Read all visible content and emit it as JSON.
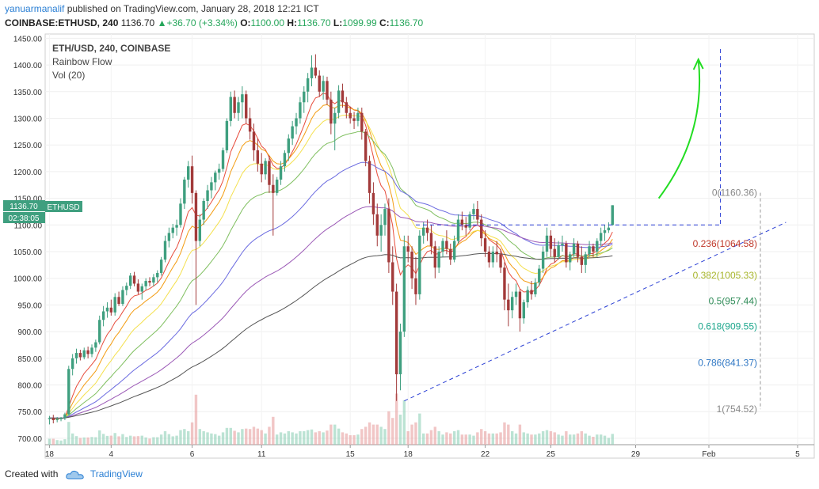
{
  "header": {
    "user": "yanuarmanalif",
    "published": "published on TradingView.com, January 28, 2018 12:21 ICT",
    "symbol": "COINBASE:ETHUSD, 240",
    "last": "1136.70",
    "change": "+36.70 (+3.34%)",
    "o_label": "O:",
    "o_value": "1100.00",
    "h_label": "H:",
    "h_value": "1136.70",
    "l_label": "L:",
    "l_value": "1099.99",
    "c_label": "C:",
    "c_value": "1136.70"
  },
  "legend": {
    "line1": "ETH/USD, 240, COINBASE",
    "line2": "Rainbow Flow",
    "line3": "Vol (20)"
  },
  "price_tag": {
    "symbol": "ETHUSD",
    "value": "1136.70",
    "countdown": "02:38:05"
  },
  "footer": {
    "created": "Created with",
    "brand": "TradingView"
  },
  "colors": {
    "up": "#3f9f7f",
    "down": "#a23a3a",
    "fib_red": "#c0392b",
    "fib_yellow": "#a7b52a",
    "fib_green": "#2e8b57",
    "fib_teal": "#1aa58b",
    "fib_blue": "#2f77c4",
    "arrow": "#22dd22"
  },
  "chart_data": {
    "type": "candlestick",
    "title": "ETH/USD, 240, COINBASE",
    "y_axis": {
      "ticks": [
        "1450.00",
        "1400.00",
        "1350.00",
        "1300.00",
        "1250.00",
        "1200.00",
        "1150.00",
        "1100.00",
        "1050.00",
        "1000.00",
        "950.00",
        "900.00",
        "850.00",
        "800.00",
        "750.00",
        "700.00"
      ],
      "ylim": [
        688,
        1458
      ]
    },
    "x_axis": {
      "ticks": [
        {
          "label": "18",
          "idx": 0
        },
        {
          "label": "4",
          "idx": 16
        },
        {
          "label": "6",
          "idx": 37
        },
        {
          "label": "11",
          "idx": 55
        },
        {
          "label": "15",
          "idx": 78
        },
        {
          "label": "18",
          "idx": 93
        },
        {
          "label": "22",
          "idx": 113
        },
        {
          "label": "25",
          "idx": 130
        },
        {
          "label": "29",
          "idx": 152
        },
        {
          "label": "Feb",
          "idx": 171
        },
        {
          "label": "5",
          "idx": 194
        }
      ],
      "n_slots": 198
    },
    "candles": [
      [
        736,
        742,
        726,
        738
      ],
      [
        738,
        744,
        728,
        734
      ],
      [
        734,
        740,
        730,
        736
      ],
      [
        736,
        740,
        732,
        738
      ],
      [
        738,
        748,
        734,
        745
      ],
      [
        745,
        836,
        744,
        830
      ],
      [
        830,
        858,
        818,
        850
      ],
      [
        850,
        868,
        840,
        860
      ],
      [
        860,
        866,
        846,
        852
      ],
      [
        852,
        870,
        848,
        865
      ],
      [
        865,
        872,
        850,
        858
      ],
      [
        858,
        876,
        852,
        870
      ],
      [
        870,
        885,
        862,
        880
      ],
      [
        880,
        930,
        876,
        922
      ],
      [
        922,
        948,
        910,
        938
      ],
      [
        938,
        955,
        926,
        945
      ],
      [
        945,
        960,
        930,
        936
      ],
      [
        936,
        972,
        930,
        965
      ],
      [
        965,
        975,
        948,
        952
      ],
      [
        952,
        985,
        948,
        978
      ],
      [
        978,
        992,
        968,
        986
      ],
      [
        986,
        1010,
        980,
        1005
      ],
      [
        1005,
        1012,
        985,
        990
      ],
      [
        990,
        998,
        970,
        975
      ],
      [
        975,
        990,
        960,
        985
      ],
      [
        985,
        1000,
        978,
        995
      ],
      [
        995,
        1002,
        985,
        992
      ],
      [
        992,
        1008,
        985,
        1002
      ],
      [
        1002,
        1015,
        992,
        1010
      ],
      [
        1010,
        1040,
        1005,
        1035
      ],
      [
        1035,
        1080,
        1030,
        1070
      ],
      [
        1070,
        1095,
        1058,
        1085
      ],
      [
        1085,
        1102,
        1075,
        1095
      ],
      [
        1095,
        1110,
        1080,
        1100
      ],
      [
        1100,
        1150,
        1095,
        1140
      ],
      [
        1140,
        1190,
        1130,
        1185
      ],
      [
        1185,
        1220,
        1170,
        1210
      ],
      [
        1210,
        1230,
        1140,
        1160
      ],
      [
        1160,
        1165,
        950,
        1070
      ],
      [
        1070,
        1120,
        1060,
        1110
      ],
      [
        1110,
        1150,
        1100,
        1145
      ],
      [
        1145,
        1175,
        1130,
        1165
      ],
      [
        1165,
        1190,
        1150,
        1180
      ],
      [
        1180,
        1202,
        1165,
        1198
      ],
      [
        1198,
        1215,
        1185,
        1205
      ],
      [
        1205,
        1245,
        1200,
        1240
      ],
      [
        1240,
        1300,
        1235,
        1295
      ],
      [
        1295,
        1350,
        1285,
        1340
      ],
      [
        1340,
        1352,
        1300,
        1310
      ],
      [
        1310,
        1340,
        1295,
        1330
      ],
      [
        1330,
        1360,
        1300,
        1345
      ],
      [
        1345,
        1352,
        1290,
        1300
      ],
      [
        1300,
        1320,
        1260,
        1275
      ],
      [
        1275,
        1290,
        1220,
        1240
      ],
      [
        1240,
        1262,
        1200,
        1215
      ],
      [
        1215,
        1235,
        1180,
        1195
      ],
      [
        1195,
        1225,
        1185,
        1220
      ],
      [
        1220,
        1230,
        1160,
        1175
      ],
      [
        1175,
        1195,
        1080,
        1160
      ],
      [
        1160,
        1190,
        1155,
        1185
      ],
      [
        1185,
        1220,
        1175,
        1210
      ],
      [
        1210,
        1240,
        1200,
        1235
      ],
      [
        1235,
        1270,
        1220,
        1262
      ],
      [
        1262,
        1295,
        1250,
        1285
      ],
      [
        1285,
        1310,
        1270,
        1300
      ],
      [
        1300,
        1340,
        1290,
        1330
      ],
      [
        1330,
        1360,
        1310,
        1350
      ],
      [
        1350,
        1385,
        1330,
        1375
      ],
      [
        1375,
        1418,
        1360,
        1395
      ],
      [
        1395,
        1420,
        1375,
        1380
      ],
      [
        1380,
        1390,
        1340,
        1350
      ],
      [
        1350,
        1380,
        1335,
        1370
      ],
      [
        1370,
        1378,
        1325,
        1335
      ],
      [
        1335,
        1350,
        1270,
        1290
      ],
      [
        1290,
        1320,
        1240,
        1310
      ],
      [
        1310,
        1362,
        1300,
        1352
      ],
      [
        1352,
        1365,
        1320,
        1330
      ],
      [
        1330,
        1340,
        1300,
        1310
      ],
      [
        1310,
        1322,
        1290,
        1300
      ],
      [
        1300,
        1312,
        1280,
        1295
      ],
      [
        1295,
        1320,
        1285,
        1310
      ],
      [
        1310,
        1320,
        1260,
        1275
      ],
      [
        1275,
        1280,
        1210,
        1220
      ],
      [
        1220,
        1230,
        1140,
        1160
      ],
      [
        1160,
        1180,
        1100,
        1120
      ],
      [
        1120,
        1140,
        1060,
        1080
      ],
      [
        1080,
        1120,
        1050,
        1100
      ],
      [
        1100,
        1140,
        1080,
        1130
      ],
      [
        1130,
        1150,
        1010,
        1030
      ],
      [
        1030,
        1060,
        950,
        975
      ],
      [
        975,
        990,
        770,
        820
      ],
      [
        820,
        915,
        790,
        900
      ],
      [
        900,
        1080,
        890,
        1060
      ],
      [
        1060,
        1080,
        1030,
        1050
      ],
      [
        1050,
        1060,
        980,
        1000
      ],
      [
        1000,
        1040,
        950,
        970
      ],
      [
        970,
        1090,
        960,
        1080
      ],
      [
        1080,
        1105,
        1065,
        1095
      ],
      [
        1095,
        1110,
        1070,
        1085
      ],
      [
        1085,
        1100,
        1045,
        1060
      ],
      [
        1060,
        1070,
        1000,
        1020
      ],
      [
        1020,
        1060,
        1010,
        1050
      ],
      [
        1050,
        1075,
        1040,
        1070
      ],
      [
        1070,
        1090,
        1045,
        1055
      ],
      [
        1055,
        1065,
        1025,
        1035
      ],
      [
        1035,
        1080,
        1030,
        1070
      ],
      [
        1070,
        1120,
        1065,
        1110
      ],
      [
        1110,
        1125,
        1090,
        1100
      ],
      [
        1100,
        1115,
        1080,
        1095
      ],
      [
        1095,
        1125,
        1090,
        1120
      ],
      [
        1120,
        1140,
        1110,
        1130
      ],
      [
        1130,
        1145,
        1100,
        1110
      ],
      [
        1110,
        1120,
        1060,
        1075
      ],
      [
        1075,
        1090,
        1040,
        1050
      ],
      [
        1050,
        1060,
        1020,
        1030
      ],
      [
        1030,
        1060,
        1020,
        1050
      ],
      [
        1050,
        1070,
        1030,
        1045
      ],
      [
        1045,
        1055,
        1010,
        1020
      ],
      [
        1020,
        1030,
        940,
        960
      ],
      [
        960,
        990,
        910,
        940
      ],
      [
        940,
        975,
        925,
        965
      ],
      [
        965,
        990,
        950,
        975
      ],
      [
        975,
        980,
        900,
        925
      ],
      [
        925,
        960,
        915,
        955
      ],
      [
        955,
        985,
        945,
        978
      ],
      [
        978,
        995,
        960,
        970
      ],
      [
        970,
        1000,
        965,
        992
      ],
      [
        992,
        1025,
        985,
        1018
      ],
      [
        1018,
        1060,
        1010,
        1050
      ],
      [
        1050,
        1095,
        1040,
        1080
      ],
      [
        1080,
        1090,
        1040,
        1055
      ],
      [
        1055,
        1075,
        1030,
        1040
      ],
      [
        1040,
        1070,
        1035,
        1062
      ],
      [
        1062,
        1080,
        1050,
        1065
      ],
      [
        1065,
        1070,
        1020,
        1030
      ],
      [
        1030,
        1050,
        1015,
        1045
      ],
      [
        1045,
        1075,
        1040,
        1065
      ],
      [
        1065,
        1070,
        1030,
        1040
      ],
      [
        1040,
        1060,
        1010,
        1025
      ],
      [
        1025,
        1050,
        1010,
        1045
      ],
      [
        1045,
        1070,
        1040,
        1060
      ],
      [
        1060,
        1065,
        1040,
        1050
      ],
      [
        1050,
        1075,
        1040,
        1070
      ],
      [
        1070,
        1095,
        1060,
        1085
      ],
      [
        1085,
        1100,
        1070,
        1090
      ],
      [
        1090,
        1105,
        1085,
        1095
      ],
      [
        1100,
        1137,
        1099,
        1137
      ]
    ],
    "horizontal_level": 1100,
    "trendline": [
      [
        92,
        770
      ],
      [
        191,
        1105
      ]
    ],
    "fibonacci": [
      {
        "label": "0(1160.36)",
        "value": 1160.36,
        "color": "#888888"
      },
      {
        "label": "0.236(1064.58)",
        "value": 1064.58,
        "color": "#c0392b"
      },
      {
        "label": "0.382(1005.33)",
        "value": 1005.33,
        "color": "#a7b52a"
      },
      {
        "label": "0.5(957.44)",
        "value": 957.44,
        "color": "#2e8b57"
      },
      {
        "label": "0.618(909.55)",
        "value": 909.55,
        "color": "#1aa58b"
      },
      {
        "label": "0.786(841.37)",
        "value": 841.37,
        "color": "#2f77c4"
      },
      {
        "label": "1(754.52)",
        "value": 754.52,
        "color": "#888888"
      }
    ],
    "ma_periods": [
      8,
      13,
      21,
      34,
      55,
      89,
      144
    ],
    "ma_colors": [
      "#e74c3c",
      "#f39c12",
      "#f4e04d",
      "#7fbf5f",
      "#6a6ae0",
      "#9b59b6",
      "#555555"
    ]
  }
}
